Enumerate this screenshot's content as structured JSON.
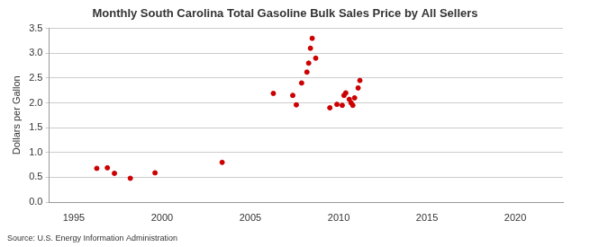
{
  "chart_data": {
    "type": "scatter",
    "title": "Monthly South Carolina Total Gasoline Bulk Sales Price by All Sellers",
    "y_label": "Dollars per Gallon",
    "source": "Source: U.S. Energy Information Administration",
    "x": [
      1996.3,
      1996.9,
      1997.3,
      1998.2,
      1999.6,
      2003.4,
      2006.3,
      2007.4,
      2007.6,
      2007.9,
      2008.2,
      2008.3,
      2008.4,
      2008.5,
      2008.7,
      2009.5,
      2009.9,
      2010.2,
      2010.3,
      2010.4,
      2010.6,
      2010.7,
      2010.8,
      2010.9,
      2011.1,
      2011.2
    ],
    "values": [
      0.68,
      0.69,
      0.58,
      0.48,
      0.59,
      0.8,
      2.19,
      2.15,
      1.96,
      2.4,
      2.62,
      2.8,
      3.1,
      3.3,
      2.9,
      1.9,
      1.97,
      1.95,
      2.15,
      2.2,
      2.07,
      2.0,
      1.95,
      2.1,
      2.3,
      2.45
    ],
    "color": "#cc0000",
    "marker": "circle",
    "xlim": [
      1993.6,
      2022.7
    ],
    "xticks": [
      1995,
      2000,
      2005,
      2010,
      2015,
      2020
    ],
    "ylim": [
      0,
      3.5
    ],
    "yticks": [
      {
        "value": 0,
        "label": "0.0"
      },
      {
        "value": 0.5,
        "label": "0.5"
      },
      {
        "value": 1,
        "label": "1.0"
      },
      {
        "value": 1.5,
        "label": "1.5"
      },
      {
        "value": 2,
        "label": "2.0"
      },
      {
        "value": 2.5,
        "label": "2.5"
      },
      {
        "value": 3,
        "label": "3.0"
      },
      {
        "value": 3.5,
        "label": "3.5"
      }
    ],
    "grid": true
  }
}
